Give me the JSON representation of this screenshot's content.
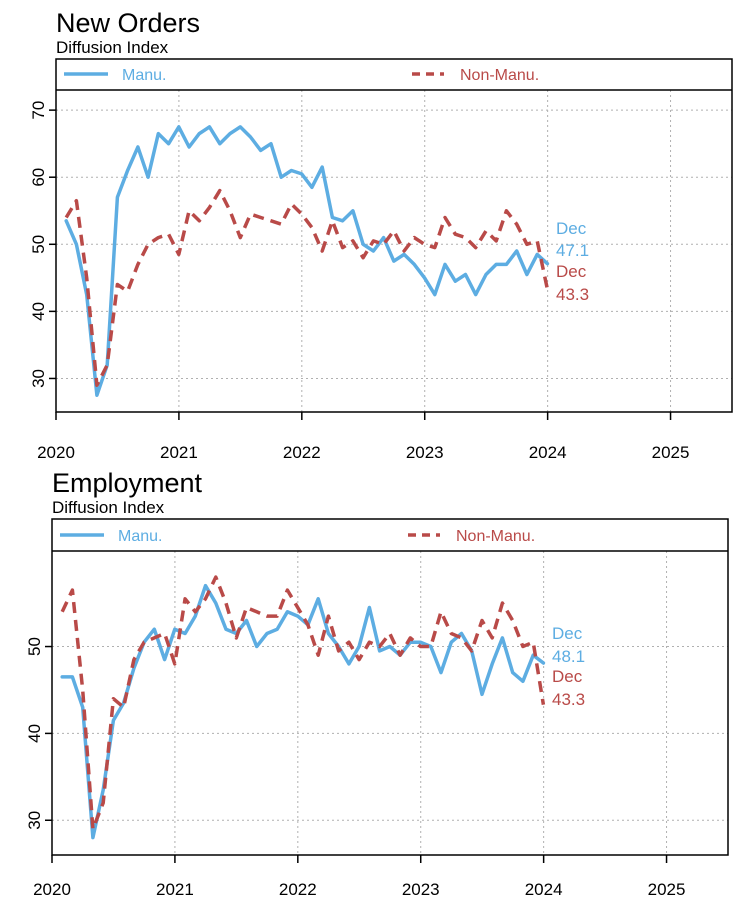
{
  "colors": {
    "manu": "#5dade2",
    "nonmanu": "#b94a48",
    "grid": "#b0b0b0"
  },
  "chart_data": [
    {
      "type": "line",
      "title": "New Orders",
      "subtitle": "Diffusion Index",
      "xlabel": "",
      "ylabel": "",
      "x_start": 2020.083,
      "x_step": 0.0833,
      "xlim": [
        2020,
        2025.5
      ],
      "ylim": [
        25,
        73
      ],
      "x_ticks": [
        "2020",
        "2021",
        "2022",
        "2023",
        "2024",
        "2025"
      ],
      "y_ticks": [
        "30",
        "40",
        "50",
        "60",
        "70"
      ],
      "legend_position": "top",
      "series": [
        {
          "name": "Manu.",
          "style": "solid",
          "values": [
            53.5,
            50.0,
            42.5,
            27.5,
            32.0,
            57.0,
            61.0,
            64.5,
            60.0,
            66.5,
            65.0,
            67.5,
            64.5,
            66.5,
            67.5,
            65.0,
            66.5,
            67.5,
            66.0,
            64.0,
            65.0,
            60.0,
            61.0,
            60.5,
            58.5,
            61.5,
            54.0,
            53.5,
            55.0,
            50.0,
            49.0,
            51.0,
            47.5,
            48.5,
            47.0,
            45.0,
            42.5,
            47.0,
            44.5,
            45.5,
            42.5,
            45.5,
            47.0,
            47.0,
            49.0,
            45.5,
            48.5,
            47.1
          ]
        },
        {
          "name": "Non-Manu.",
          "style": "dashed",
          "values": [
            54.0,
            56.5,
            45.0,
            29.0,
            32.0,
            44.0,
            43.0,
            47.0,
            50.0,
            51.0,
            51.5,
            48.5,
            55.0,
            53.5,
            55.5,
            58.0,
            55.0,
            51.0,
            54.5,
            54.0,
            53.5,
            53.0,
            56.0,
            54.5,
            52.5,
            49.0,
            53.5,
            49.5,
            50.5,
            48.0,
            50.5,
            50.0,
            52.0,
            49.0,
            51.0,
            50.0,
            49.5,
            54.0,
            51.5,
            51.0,
            49.5,
            52.0,
            50.5,
            55.0,
            53.0,
            50.0,
            50.5,
            43.3
          ]
        }
      ],
      "annotations": [
        {
          "label": "Dec",
          "value": "47.1",
          "series": "Manu."
        },
        {
          "label": "Dec",
          "value": "43.3",
          "series": "Non-Manu."
        }
      ]
    },
    {
      "type": "line",
      "title": "Employment",
      "subtitle": "Diffusion Index",
      "xlabel": "",
      "ylabel": "",
      "x_start": 2020.083,
      "x_step": 0.0833,
      "xlim": [
        2020,
        2025.5
      ],
      "ylim": [
        26,
        61
      ],
      "x_ticks": [
        "2020",
        "2021",
        "2022",
        "2023",
        "2024",
        "2025"
      ],
      "y_ticks": [
        "30",
        "40",
        "50"
      ],
      "legend_position": "top",
      "series": [
        {
          "name": "Manu.",
          "style": "solid",
          "values": [
            46.5,
            46.5,
            43.0,
            28.0,
            33.5,
            41.5,
            43.5,
            47.5,
            50.5,
            52.0,
            48.5,
            52.0,
            51.5,
            53.5,
            57.0,
            55.0,
            52.0,
            51.5,
            53.0,
            50.0,
            51.5,
            52.0,
            54.0,
            53.5,
            52.5,
            55.5,
            51.5,
            50.0,
            48.0,
            50.0,
            54.5,
            49.5,
            50.0,
            49.0,
            50.5,
            50.5,
            50.0,
            47.0,
            50.5,
            51.5,
            49.5,
            44.5,
            48.0,
            51.0,
            47.0,
            46.0,
            49.0,
            48.1
          ]
        },
        {
          "name": "Non-Manu.",
          "style": "dashed",
          "values": [
            54.0,
            56.5,
            45.0,
            29.0,
            32.0,
            44.0,
            43.0,
            48.5,
            50.5,
            51.0,
            51.5,
            48.0,
            55.5,
            54.0,
            55.5,
            58.0,
            55.0,
            51.0,
            54.5,
            54.0,
            53.5,
            53.5,
            56.5,
            54.5,
            52.5,
            49.0,
            53.5,
            49.5,
            50.5,
            48.5,
            50.5,
            50.0,
            51.5,
            49.0,
            51.0,
            50.0,
            50.0,
            54.0,
            51.5,
            51.0,
            49.5,
            53.0,
            51.0,
            55.0,
            53.0,
            50.0,
            50.5,
            43.3
          ]
        }
      ],
      "annotations": [
        {
          "label": "Dec",
          "value": "48.1",
          "series": "Manu."
        },
        {
          "label": "Dec",
          "value": "43.3",
          "series": "Non-Manu."
        }
      ]
    }
  ]
}
